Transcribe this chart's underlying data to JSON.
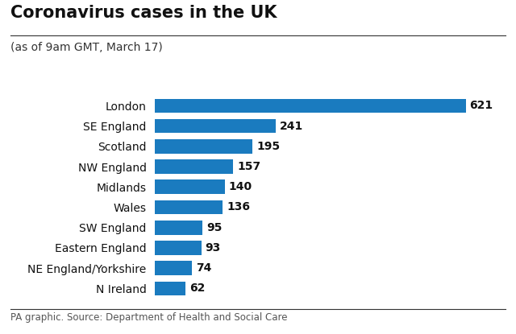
{
  "title": "Coronavirus cases in the UK",
  "subtitle": "(as of 9am GMT, March 17)",
  "footer": "PA graphic. Source: Department of Health and Social Care",
  "categories": [
    "London",
    "SE England",
    "Scotland",
    "NW England",
    "Midlands",
    "Wales",
    "SW England",
    "Eastern England",
    "NE England/Yorkshire",
    "N Ireland"
  ],
  "values": [
    621,
    241,
    195,
    157,
    140,
    136,
    95,
    93,
    74,
    62
  ],
  "bar_color": "#1a7bbf",
  "background_color": "#ffffff",
  "xlim": [
    0,
    670
  ],
  "title_fontsize": 15,
  "subtitle_fontsize": 10,
  "label_fontsize": 10,
  "value_fontsize": 10,
  "footer_fontsize": 8.5
}
